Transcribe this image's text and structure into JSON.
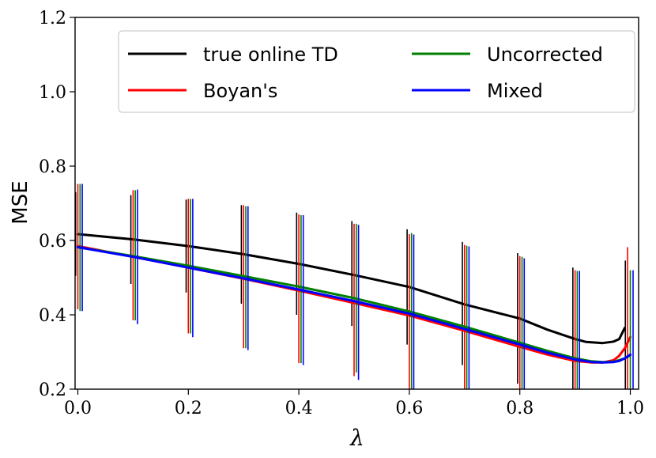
{
  "chart_data": {
    "type": "line",
    "xlabel": "λ",
    "ylabel": "MSE",
    "xlim": [
      -0.005,
      1.015
    ],
    "ylim": [
      0.2,
      1.2
    ],
    "x_ticks": [
      0.0,
      0.2,
      0.4,
      0.6,
      0.8,
      1.0
    ],
    "x_tick_labels": [
      "0.0",
      "0.2",
      "0.4",
      "0.6",
      "0.8",
      "1.0"
    ],
    "y_ticks": [
      0.2,
      0.4,
      0.6,
      0.8,
      1.0,
      1.2
    ],
    "y_tick_labels": [
      "0.2",
      "0.4",
      "0.6",
      "0.8",
      "1.0",
      "1.2"
    ],
    "grid": false,
    "legend_position": "top-right",
    "series": [
      {
        "name": "true online TD",
        "color": "#000000",
        "x": [
          0.0,
          0.1,
          0.2,
          0.3,
          0.4,
          0.5,
          0.6,
          0.7,
          0.8,
          0.85,
          0.9,
          0.92,
          0.95,
          0.97,
          0.98,
          0.99
        ],
        "y": [
          0.617,
          0.603,
          0.585,
          0.563,
          0.537,
          0.507,
          0.475,
          0.428,
          0.39,
          0.36,
          0.335,
          0.327,
          0.324,
          0.328,
          0.335,
          0.365
        ],
        "err_x": [
          -0.004,
          0.096,
          0.196,
          0.296,
          0.396,
          0.496,
          0.596,
          0.696,
          0.796,
          0.896,
          0.991
        ],
        "err_lo": [
          0.505,
          0.483,
          0.46,
          0.43,
          0.4,
          0.37,
          0.32,
          0.265,
          0.215,
          0.2,
          0.2
        ],
        "err_hi": [
          0.73,
          0.722,
          0.71,
          0.695,
          0.675,
          0.652,
          0.63,
          0.596,
          0.566,
          0.527,
          0.546
        ]
      },
      {
        "name": "Boyan's",
        "color": "#ff0000",
        "x": [
          0.0,
          0.1,
          0.2,
          0.3,
          0.4,
          0.5,
          0.6,
          0.7,
          0.8,
          0.85,
          0.9,
          0.93,
          0.95,
          0.97,
          0.98,
          0.99,
          1.0
        ],
        "y": [
          0.585,
          0.556,
          0.527,
          0.497,
          0.465,
          0.432,
          0.398,
          0.357,
          0.314,
          0.293,
          0.276,
          0.272,
          0.272,
          0.278,
          0.29,
          0.31,
          0.34
        ],
        "err_x": [
          0.0,
          0.1,
          0.2,
          0.3,
          0.4,
          0.5,
          0.6,
          0.7,
          0.8,
          0.9,
          0.995
        ],
        "err_lo": [
          0.415,
          0.385,
          0.35,
          0.31,
          0.27,
          0.235,
          0.2,
          0.2,
          0.2,
          0.2,
          0.2
        ],
        "err_hi": [
          0.752,
          0.735,
          0.712,
          0.695,
          0.67,
          0.645,
          0.617,
          0.588,
          0.558,
          0.52,
          0.582
        ]
      },
      {
        "name": "Uncorrected",
        "color": "#008000",
        "x": [
          0.0,
          0.1,
          0.2,
          0.3,
          0.4,
          0.5,
          0.6,
          0.7,
          0.8,
          0.85,
          0.9,
          0.93,
          0.95,
          0.97,
          0.98,
          0.99,
          1.0
        ],
        "y": [
          0.582,
          0.558,
          0.532,
          0.504,
          0.476,
          0.445,
          0.409,
          0.368,
          0.325,
          0.303,
          0.283,
          0.275,
          0.273,
          0.274,
          0.278,
          0.283,
          0.291
        ],
        "err_x": [
          0.004,
          0.104,
          0.204,
          0.304,
          0.404,
          0.504,
          0.604,
          0.704,
          0.804,
          0.904,
          1.0
        ],
        "err_lo": [
          0.41,
          0.385,
          0.35,
          0.31,
          0.27,
          0.245,
          0.2,
          0.2,
          0.2,
          0.2,
          0.2
        ],
        "err_hi": [
          0.752,
          0.735,
          0.712,
          0.692,
          0.668,
          0.645,
          0.62,
          0.586,
          0.556,
          0.518,
          0.52
        ]
      },
      {
        "name": "Mixed",
        "color": "#0000ff",
        "x": [
          0.0,
          0.1,
          0.2,
          0.3,
          0.4,
          0.5,
          0.6,
          0.7,
          0.8,
          0.85,
          0.9,
          0.93,
          0.95,
          0.97,
          0.98,
          0.99,
          1.0
        ],
        "y": [
          0.582,
          0.556,
          0.527,
          0.498,
          0.468,
          0.437,
          0.403,
          0.362,
          0.32,
          0.298,
          0.28,
          0.273,
          0.272,
          0.273,
          0.276,
          0.283,
          0.293
        ],
        "err_x": [
          0.008,
          0.108,
          0.208,
          0.308,
          0.408,
          0.508,
          0.608,
          0.708,
          0.808,
          0.908,
          1.005
        ],
        "err_lo": [
          0.41,
          0.375,
          0.34,
          0.305,
          0.265,
          0.225,
          0.2,
          0.2,
          0.2,
          0.2,
          0.2
        ],
        "err_hi": [
          0.752,
          0.737,
          0.712,
          0.692,
          0.668,
          0.642,
          0.616,
          0.584,
          0.552,
          0.518,
          0.52
        ]
      }
    ]
  }
}
